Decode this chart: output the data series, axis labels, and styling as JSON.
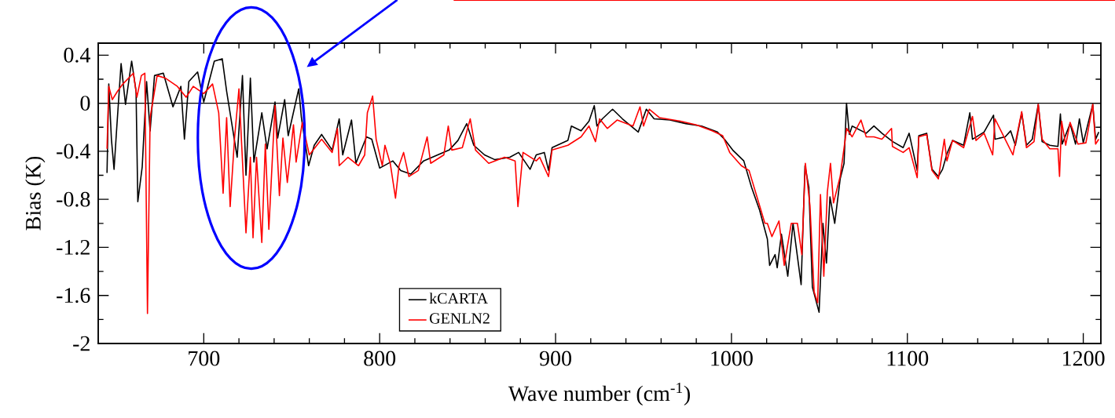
{
  "chart_data": {
    "type": "line",
    "xlabel": "Wave number (cm$^{-1}$)",
    "ylabel": "Bias (K)",
    "xlim": [
      640,
      1210
    ],
    "ylim": [
      -2,
      0.5
    ],
    "xticks": [
      700,
      800,
      900,
      1000,
      1100,
      1200
    ],
    "yticks": [
      {
        "value": -2,
        "label": "-2"
      },
      {
        "value": -1.6,
        "label": "-1.6"
      },
      {
        "value": -1.2,
        "label": "-1.2"
      },
      {
        "value": -0.8,
        "label": "-0.8"
      },
      {
        "value": -0.4,
        "label": "-0.4"
      },
      {
        "value": 0,
        "label": "0"
      },
      {
        "value": 0.4,
        "label": "0.4"
      }
    ],
    "grid": false,
    "legend": "bottom",
    "marker": "none",
    "line_style": "solid",
    "ref_lines": [
      {
        "axis": "y",
        "value": 0,
        "color": "#000000"
      }
    ],
    "series": [
      {
        "name": "kCARTA",
        "color": "#000000",
        "x": [
          645,
          646,
          647.5,
          649,
          650.5,
          653,
          655.5,
          659,
          661.5,
          662.5,
          665,
          667.5,
          669.5,
          672,
          677,
          682.5,
          687,
          689,
          691.5,
          696.5,
          700,
          706,
          710.5,
          713,
          719,
          722,
          724,
          726.5,
          728.5,
          733,
          736,
          740.5,
          742,
          746,
          748,
          754,
          755.5,
          759.6,
          762.8,
          767,
          773,
          777,
          779,
          784,
          786.5,
          792.5,
          795.5,
          800,
          807.5,
          812,
          817.7,
          825,
          833,
          839.5,
          844.5,
          849.5,
          853.5,
          859.6,
          865.5,
          874,
          879,
          885.5,
          889,
          893.6,
          896,
          898,
          907,
          909,
          914.5,
          919,
          922,
          923.5,
          926.6,
          932.4,
          938,
          947,
          951.6,
          956,
          965,
          974,
          983,
          992,
          996,
          1000.7,
          1007,
          1011.4,
          1016,
          1020.4,
          1021.7,
          1024.8,
          1026,
          1028.4,
          1032,
          1035,
          1039.6,
          1041.8,
          1044,
          1046,
          1049.8,
          1052,
          1054,
          1056,
          1058.7,
          1061.8,
          1064,
          1065.4,
          1067,
          1068.6,
          1076.6,
          1081,
          1085.5,
          1091.7,
          1097.6,
          1101,
          1105.6,
          1106.5,
          1111,
          1114,
          1117.6,
          1120,
          1122.5,
          1125.7,
          1132,
          1135.5,
          1137,
          1143.6,
          1149,
          1149.8,
          1155.6,
          1158.7,
          1161.4,
          1165,
          1167.7,
          1171,
          1174.4,
          1176.6,
          1181,
          1185.6,
          1187,
          1188,
          1192.5,
          1195.6,
          1197.8,
          1200,
          1205.4,
          1207,
          1208.8
        ],
        "values": [
          -0.58,
          0.16,
          -0.3,
          -0.55,
          -0.21,
          0.33,
          -0.01,
          0.35,
          0.1,
          -0.82,
          -0.53,
          0.18,
          -0.23,
          0.23,
          0.25,
          -0.03,
          0.14,
          -0.3,
          0.18,
          0.26,
          0.01,
          0.35,
          0.37,
          0.1,
          -0.45,
          0.23,
          -0.6,
          0.21,
          -0.49,
          -0.08,
          -0.38,
          0.01,
          -0.29,
          0.03,
          -0.27,
          0.12,
          -0.12,
          -0.52,
          -0.35,
          -0.26,
          -0.39,
          -0.13,
          -0.43,
          -0.14,
          -0.5,
          -0.28,
          -0.3,
          -0.54,
          -0.48,
          -0.56,
          -0.59,
          -0.48,
          -0.43,
          -0.39,
          -0.31,
          -0.17,
          -0.35,
          -0.43,
          -0.47,
          -0.45,
          -0.41,
          -0.55,
          -0.43,
          -0.41,
          -0.56,
          -0.37,
          -0.31,
          -0.19,
          -0.23,
          -0.15,
          -0.02,
          -0.19,
          -0.13,
          -0.05,
          -0.13,
          -0.24,
          -0.05,
          -0.13,
          -0.14,
          -0.17,
          -0.19,
          -0.24,
          -0.3,
          -0.39,
          -0.48,
          -0.7,
          -0.89,
          -1.13,
          -1.35,
          -1.26,
          -1.37,
          -1.09,
          -1.44,
          -1.0,
          -1.51,
          -0.52,
          -0.7,
          -1.53,
          -1.74,
          -1.0,
          -1.33,
          -0.78,
          -1.0,
          -0.63,
          -0.5,
          0.0,
          -0.26,
          -0.19,
          -0.25,
          -0.19,
          -0.25,
          -0.32,
          -0.37,
          -0.25,
          -0.56,
          -0.27,
          -0.25,
          -0.55,
          -0.61,
          -0.55,
          -0.42,
          -0.31,
          -0.35,
          -0.08,
          -0.3,
          -0.24,
          -0.1,
          -0.3,
          -0.28,
          -0.23,
          -0.35,
          -0.08,
          -0.35,
          -0.3,
          -0.01,
          -0.32,
          -0.35,
          -0.36,
          -0.09,
          -0.34,
          -0.17,
          -0.34,
          -0.13,
          -0.33,
          -0.01,
          -0.3,
          -0.24
        ]
      },
      {
        "name": "GENLN2",
        "color": "#ff0000",
        "x": [
          645,
          646,
          648,
          651,
          654,
          660,
          662,
          664.5,
          666.5,
          668,
          669.5,
          673.5,
          678,
          685,
          690,
          694,
          700,
          705,
          708.5,
          711,
          713,
          715,
          717.5,
          720,
          724,
          726.5,
          728,
          730,
          733,
          735,
          737,
          740.5,
          743,
          745,
          747.5,
          751,
          752.5,
          756,
          760,
          767,
          773,
          776,
          777,
          782,
          788,
          791.5,
          793,
          796,
          798,
          801.5,
          803,
          806,
          809,
          811,
          813.6,
          816.6,
          822,
          827,
          829,
          836.5,
          839,
          841,
          847,
          851.5,
          854.5,
          862,
          871,
          877,
          878.6,
          881.5,
          889,
          891,
          896,
          898,
          907,
          914.5,
          919,
          922.7,
          925,
          929.4,
          935,
          944,
          948,
          950,
          953.3,
          959,
          971,
          980,
          989,
          995,
          999,
          1005.6,
          1010,
          1014.5,
          1019,
          1020.4,
          1023,
          1027,
          1030,
          1034,
          1037.5,
          1040,
          1042,
          1044.6,
          1047,
          1049,
          1050.6,
          1052.5,
          1054.5,
          1056.3,
          1058,
          1061.8,
          1065.5,
          1068.6,
          1073.6,
          1076.6,
          1081,
          1085.5,
          1091,
          1091.5,
          1097.6,
          1101,
          1105.6,
          1106.5,
          1111,
          1114,
          1117.6,
          1121,
          1122.5,
          1125.7,
          1132,
          1137,
          1139,
          1143.6,
          1148.5,
          1149.8,
          1155.6,
          1160,
          1165,
          1167.7,
          1172,
          1174.4,
          1176.6,
          1181,
          1185.6,
          1186.5,
          1187.7,
          1190,
          1192.5,
          1197,
          1201.5,
          1205.4,
          1207,
          1208.8
        ],
        "values": [
          -0.38,
          0.14,
          0.03,
          0.1,
          0.16,
          0.25,
          0.05,
          0.23,
          0.25,
          -1.75,
          -0.12,
          0.23,
          0.21,
          0.14,
          0.05,
          0.14,
          0.08,
          0.16,
          -0.08,
          -0.75,
          -0.12,
          -0.86,
          -0.29,
          0.12,
          -1.08,
          -0.45,
          -1.12,
          -0.45,
          -1.16,
          -0.34,
          -1.05,
          -0.02,
          -0.77,
          -0.29,
          -0.66,
          -0.18,
          -0.49,
          -0.16,
          -0.43,
          -0.3,
          -0.41,
          -0.21,
          -0.52,
          -0.45,
          -0.52,
          -0.43,
          -0.08,
          0.06,
          -0.3,
          -0.52,
          -0.35,
          -0.5,
          -0.79,
          -0.52,
          -0.41,
          -0.61,
          -0.56,
          -0.28,
          -0.5,
          -0.43,
          -0.19,
          -0.39,
          -0.37,
          -0.13,
          -0.39,
          -0.5,
          -0.45,
          -0.48,
          -0.86,
          -0.41,
          -0.48,
          -0.45,
          -0.61,
          -0.39,
          -0.35,
          -0.28,
          -0.19,
          -0.32,
          -0.13,
          -0.21,
          -0.14,
          -0.19,
          -0.03,
          -0.19,
          -0.05,
          -0.12,
          -0.15,
          -0.18,
          -0.23,
          -0.27,
          -0.41,
          -0.52,
          -0.56,
          -0.78,
          -1.0,
          -1.0,
          -1.11,
          -0.98,
          -1.35,
          -1.0,
          -1.0,
          -1.26,
          -0.5,
          -0.85,
          -1.57,
          -1.66,
          -0.76,
          -1.44,
          -0.74,
          -0.5,
          -0.83,
          -0.61,
          -0.21,
          -0.28,
          -0.14,
          -0.28,
          -0.28,
          -0.3,
          -0.21,
          -0.36,
          -0.41,
          -0.37,
          -0.62,
          -0.28,
          -0.26,
          -0.56,
          -0.63,
          -0.3,
          -0.48,
          -0.31,
          -0.37,
          -0.11,
          -0.31,
          -0.25,
          -0.43,
          -0.13,
          -0.3,
          -0.43,
          -0.07,
          -0.37,
          -0.32,
          -0.01,
          -0.3,
          -0.38,
          -0.38,
          -0.61,
          -0.15,
          -0.35,
          -0.16,
          -0.34,
          -0.33,
          -0.01,
          -0.34,
          -0.3
        ]
      }
    ]
  }
}
